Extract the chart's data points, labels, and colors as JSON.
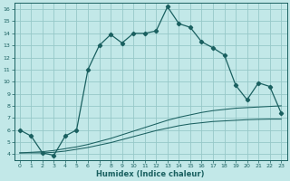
{
  "xlabel": "Humidex (Indice chaleur)",
  "bg_color": "#c2e8e8",
  "grid_color": "#96c8c8",
  "line_color": "#1a6060",
  "xlim": [
    -0.5,
    23.5
  ],
  "ylim": [
    3.5,
    16.5
  ],
  "x_ticks": [
    0,
    1,
    2,
    3,
    4,
    5,
    6,
    7,
    8,
    9,
    10,
    11,
    12,
    13,
    14,
    15,
    16,
    17,
    18,
    19,
    20,
    21,
    22,
    23
  ],
  "y_ticks": [
    4,
    5,
    6,
    7,
    8,
    9,
    10,
    11,
    12,
    13,
    14,
    15,
    16
  ],
  "line1_x": [
    0,
    1,
    2,
    3,
    4,
    5,
    6,
    7,
    8,
    9,
    10,
    11,
    12,
    13,
    14,
    15,
    16,
    17,
    18,
    19,
    20,
    21,
    22,
    23
  ],
  "line1_y": [
    6.0,
    5.5,
    4.1,
    3.9,
    5.5,
    6.0,
    11.0,
    13.0,
    13.9,
    13.2,
    14.0,
    14.0,
    14.2,
    16.2,
    14.8,
    14.5,
    13.3,
    12.8,
    12.2,
    9.7,
    8.5,
    9.9,
    9.6,
    7.4
  ],
  "line2_x": [
    0,
    1,
    2,
    3,
    4,
    5,
    6,
    7,
    8,
    9,
    10,
    11,
    12,
    13,
    14,
    15,
    16,
    17,
    18,
    19,
    20,
    21,
    22,
    23
  ],
  "line2_y": [
    4.1,
    4.15,
    4.2,
    4.3,
    4.45,
    4.6,
    4.8,
    5.05,
    5.3,
    5.6,
    5.9,
    6.2,
    6.5,
    6.8,
    7.05,
    7.25,
    7.45,
    7.6,
    7.7,
    7.8,
    7.85,
    7.9,
    7.95,
    8.0
  ],
  "line3_x": [
    0,
    1,
    2,
    3,
    4,
    5,
    6,
    7,
    8,
    9,
    10,
    11,
    12,
    13,
    14,
    15,
    16,
    17,
    18,
    19,
    20,
    21,
    22,
    23
  ],
  "line3_y": [
    4.1,
    4.1,
    4.1,
    4.15,
    4.25,
    4.4,
    4.55,
    4.75,
    4.95,
    5.2,
    5.45,
    5.7,
    5.95,
    6.15,
    6.35,
    6.5,
    6.6,
    6.7,
    6.75,
    6.8,
    6.85,
    6.88,
    6.9,
    6.9
  ]
}
